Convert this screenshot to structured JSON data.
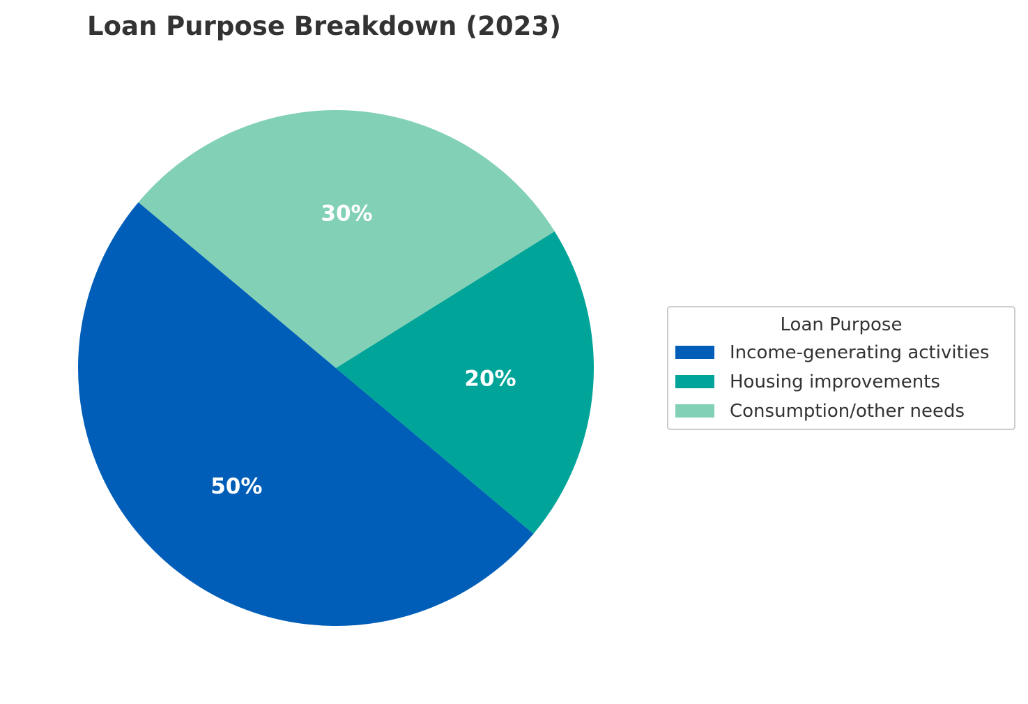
{
  "chart_data": {
    "type": "pie",
    "title": "Loan Purpose Breakdown (2023)",
    "legend": {
      "title": "Loan Purpose",
      "placement": "right"
    },
    "slices": [
      {
        "label": "Income-generating activities",
        "value": 50,
        "display": "50%",
        "color": "#005EB8"
      },
      {
        "label": "Housing improvements",
        "value": 20,
        "display": "20%",
        "color": "#00A499"
      },
      {
        "label": "Consumption/other needs",
        "value": 30,
        "display": "30%",
        "color": "#82D0B6"
      }
    ]
  }
}
